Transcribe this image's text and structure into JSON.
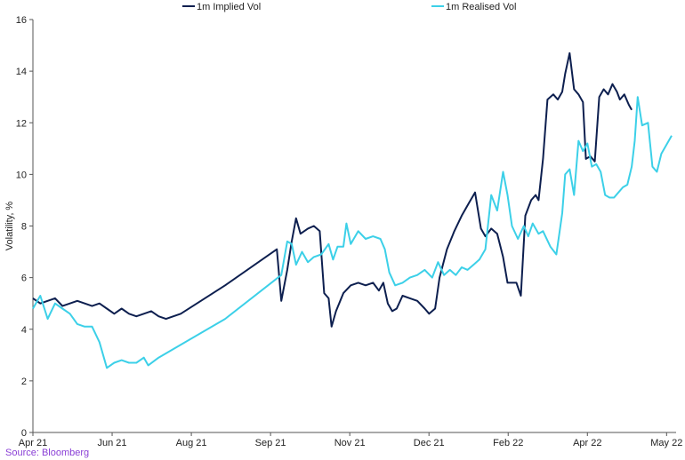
{
  "chart_data": {
    "type": "line",
    "title": "",
    "xlabel": "",
    "ylabel": "Volatility, %",
    "ylim": [
      0,
      16
    ],
    "y_ticks": [
      0,
      2,
      4,
      6,
      8,
      10,
      12,
      14,
      16
    ],
    "x_tick_labels": [
      "Apr 21",
      "Jun 21",
      "Aug 21",
      "Sep 21",
      "Nov 21",
      "Dec 21",
      "Feb 22",
      "Apr 22",
      "May 22"
    ],
    "x_range": [
      0,
      435
    ],
    "grid": false,
    "legend_position": "top",
    "series": [
      {
        "name": "1m Implied Vol",
        "color": "#0d1f4f",
        "points": [
          [
            0,
            5.2
          ],
          [
            5,
            5.0
          ],
          [
            10,
            5.1
          ],
          [
            15,
            5.2
          ],
          [
            20,
            4.9
          ],
          [
            25,
            5.0
          ],
          [
            30,
            5.1
          ],
          [
            35,
            5.0
          ],
          [
            40,
            4.9
          ],
          [
            45,
            5.0
          ],
          [
            50,
            4.8
          ],
          [
            55,
            4.6
          ],
          [
            60,
            4.8
          ],
          [
            65,
            4.6
          ],
          [
            70,
            4.5
          ],
          [
            75,
            4.6
          ],
          [
            80,
            4.7
          ],
          [
            85,
            4.5
          ],
          [
            90,
            4.4
          ],
          [
            95,
            4.5
          ],
          [
            100,
            4.6
          ],
          [
            130,
            5.7
          ],
          [
            165,
            7.1
          ],
          [
            168,
            5.1
          ],
          [
            172,
            6.3
          ],
          [
            175,
            7.4
          ],
          [
            178,
            8.3
          ],
          [
            181,
            7.7
          ],
          [
            186,
            7.9
          ],
          [
            190,
            8.0
          ],
          [
            194,
            7.8
          ],
          [
            197,
            5.4
          ],
          [
            200,
            5.2
          ],
          [
            202,
            4.1
          ],
          [
            205,
            4.7
          ],
          [
            210,
            5.4
          ],
          [
            215,
            5.7
          ],
          [
            220,
            5.8
          ],
          [
            225,
            5.7
          ],
          [
            230,
            5.8
          ],
          [
            234,
            5.5
          ],
          [
            237,
            5.8
          ],
          [
            240,
            5.0
          ],
          [
            243,
            4.7
          ],
          [
            246,
            4.8
          ],
          [
            250,
            5.3
          ],
          [
            255,
            5.2
          ],
          [
            260,
            5.1
          ],
          [
            265,
            4.8
          ],
          [
            268,
            4.6
          ],
          [
            272,
            4.8
          ],
          [
            275,
            6.0
          ],
          [
            280,
            7.1
          ],
          [
            285,
            7.8
          ],
          [
            290,
            8.4
          ],
          [
            295,
            8.9
          ],
          [
            299,
            9.3
          ],
          [
            303,
            7.9
          ],
          [
            306,
            7.6
          ],
          [
            310,
            7.9
          ],
          [
            314,
            7.7
          ],
          [
            318,
            6.8
          ],
          [
            321,
            5.8
          ],
          [
            324,
            5.8
          ],
          [
            327,
            5.8
          ],
          [
            330,
            5.3
          ],
          [
            333,
            8.4
          ],
          [
            337,
            9.0
          ],
          [
            340,
            9.2
          ],
          [
            342,
            9.0
          ],
          [
            345,
            10.6
          ],
          [
            348,
            12.9
          ],
          [
            352,
            13.1
          ],
          [
            355,
            12.9
          ],
          [
            358,
            13.2
          ],
          [
            360,
            13.9
          ],
          [
            363,
            14.7
          ],
          [
            366,
            13.3
          ],
          [
            369,
            13.1
          ],
          [
            372,
            12.8
          ],
          [
            374,
            10.6
          ],
          [
            377,
            10.7
          ],
          [
            380,
            10.5
          ],
          [
            383,
            13.0
          ],
          [
            386,
            13.3
          ],
          [
            389,
            13.1
          ],
          [
            392,
            13.5
          ],
          [
            395,
            13.2
          ],
          [
            397,
            12.9
          ],
          [
            400,
            13.1
          ],
          [
            403,
            12.7
          ],
          [
            405,
            12.5
          ]
        ]
      },
      {
        "name": "1m Realised Vol",
        "color": "#3cd0e8",
        "points": [
          [
            0,
            4.8
          ],
          [
            5,
            5.3
          ],
          [
            10,
            4.4
          ],
          [
            15,
            5.0
          ],
          [
            20,
            4.8
          ],
          [
            25,
            4.6
          ],
          [
            30,
            4.2
          ],
          [
            35,
            4.1
          ],
          [
            40,
            4.1
          ],
          [
            45,
            3.5
          ],
          [
            50,
            2.5
          ],
          [
            55,
            2.7
          ],
          [
            60,
            2.8
          ],
          [
            65,
            2.7
          ],
          [
            70,
            2.7
          ],
          [
            75,
            2.9
          ],
          [
            78,
            2.6
          ],
          [
            85,
            2.9
          ],
          [
            130,
            4.4
          ],
          [
            168,
            6.1
          ],
          [
            172,
            7.4
          ],
          [
            175,
            7.3
          ],
          [
            178,
            6.5
          ],
          [
            182,
            7.0
          ],
          [
            186,
            6.6
          ],
          [
            190,
            6.8
          ],
          [
            195,
            6.9
          ],
          [
            200,
            7.3
          ],
          [
            203,
            6.7
          ],
          [
            206,
            7.2
          ],
          [
            210,
            7.2
          ],
          [
            212,
            8.1
          ],
          [
            215,
            7.3
          ],
          [
            220,
            7.8
          ],
          [
            225,
            7.5
          ],
          [
            230,
            7.6
          ],
          [
            235,
            7.5
          ],
          [
            238,
            7.1
          ],
          [
            241,
            6.2
          ],
          [
            245,
            5.7
          ],
          [
            250,
            5.8
          ],
          [
            255,
            6.0
          ],
          [
            260,
            6.1
          ],
          [
            265,
            6.3
          ],
          [
            270,
            6.0
          ],
          [
            274,
            6.6
          ],
          [
            278,
            6.1
          ],
          [
            282,
            6.3
          ],
          [
            286,
            6.1
          ],
          [
            290,
            6.4
          ],
          [
            294,
            6.3
          ],
          [
            298,
            6.5
          ],
          [
            302,
            6.7
          ],
          [
            306,
            7.1
          ],
          [
            310,
            9.2
          ],
          [
            314,
            8.6
          ],
          [
            318,
            10.1
          ],
          [
            321,
            9.2
          ],
          [
            324,
            8.0
          ],
          [
            328,
            7.5
          ],
          [
            332,
            8.0
          ],
          [
            335,
            7.6
          ],
          [
            338,
            8.1
          ],
          [
            342,
            7.7
          ],
          [
            345,
            7.8
          ],
          [
            350,
            7.2
          ],
          [
            354,
            6.9
          ],
          [
            358,
            8.5
          ],
          [
            360,
            10.0
          ],
          [
            363,
            10.2
          ],
          [
            366,
            9.2
          ],
          [
            369,
            11.3
          ],
          [
            372,
            10.9
          ],
          [
            375,
            11.2
          ],
          [
            378,
            10.3
          ],
          [
            381,
            10.4
          ],
          [
            384,
            10.1
          ],
          [
            387,
            9.2
          ],
          [
            390,
            9.1
          ],
          [
            393,
            9.1
          ],
          [
            396,
            9.3
          ],
          [
            399,
            9.5
          ],
          [
            402,
            9.6
          ],
          [
            405,
            10.3
          ],
          [
            407,
            11.3
          ],
          [
            409,
            13.0
          ],
          [
            412,
            11.9
          ],
          [
            416,
            12.0
          ],
          [
            419,
            10.3
          ],
          [
            422,
            10.1
          ],
          [
            425,
            10.8
          ],
          [
            428,
            11.1
          ],
          [
            432,
            11.5
          ]
        ]
      }
    ]
  },
  "source": "Source: Bloomberg"
}
